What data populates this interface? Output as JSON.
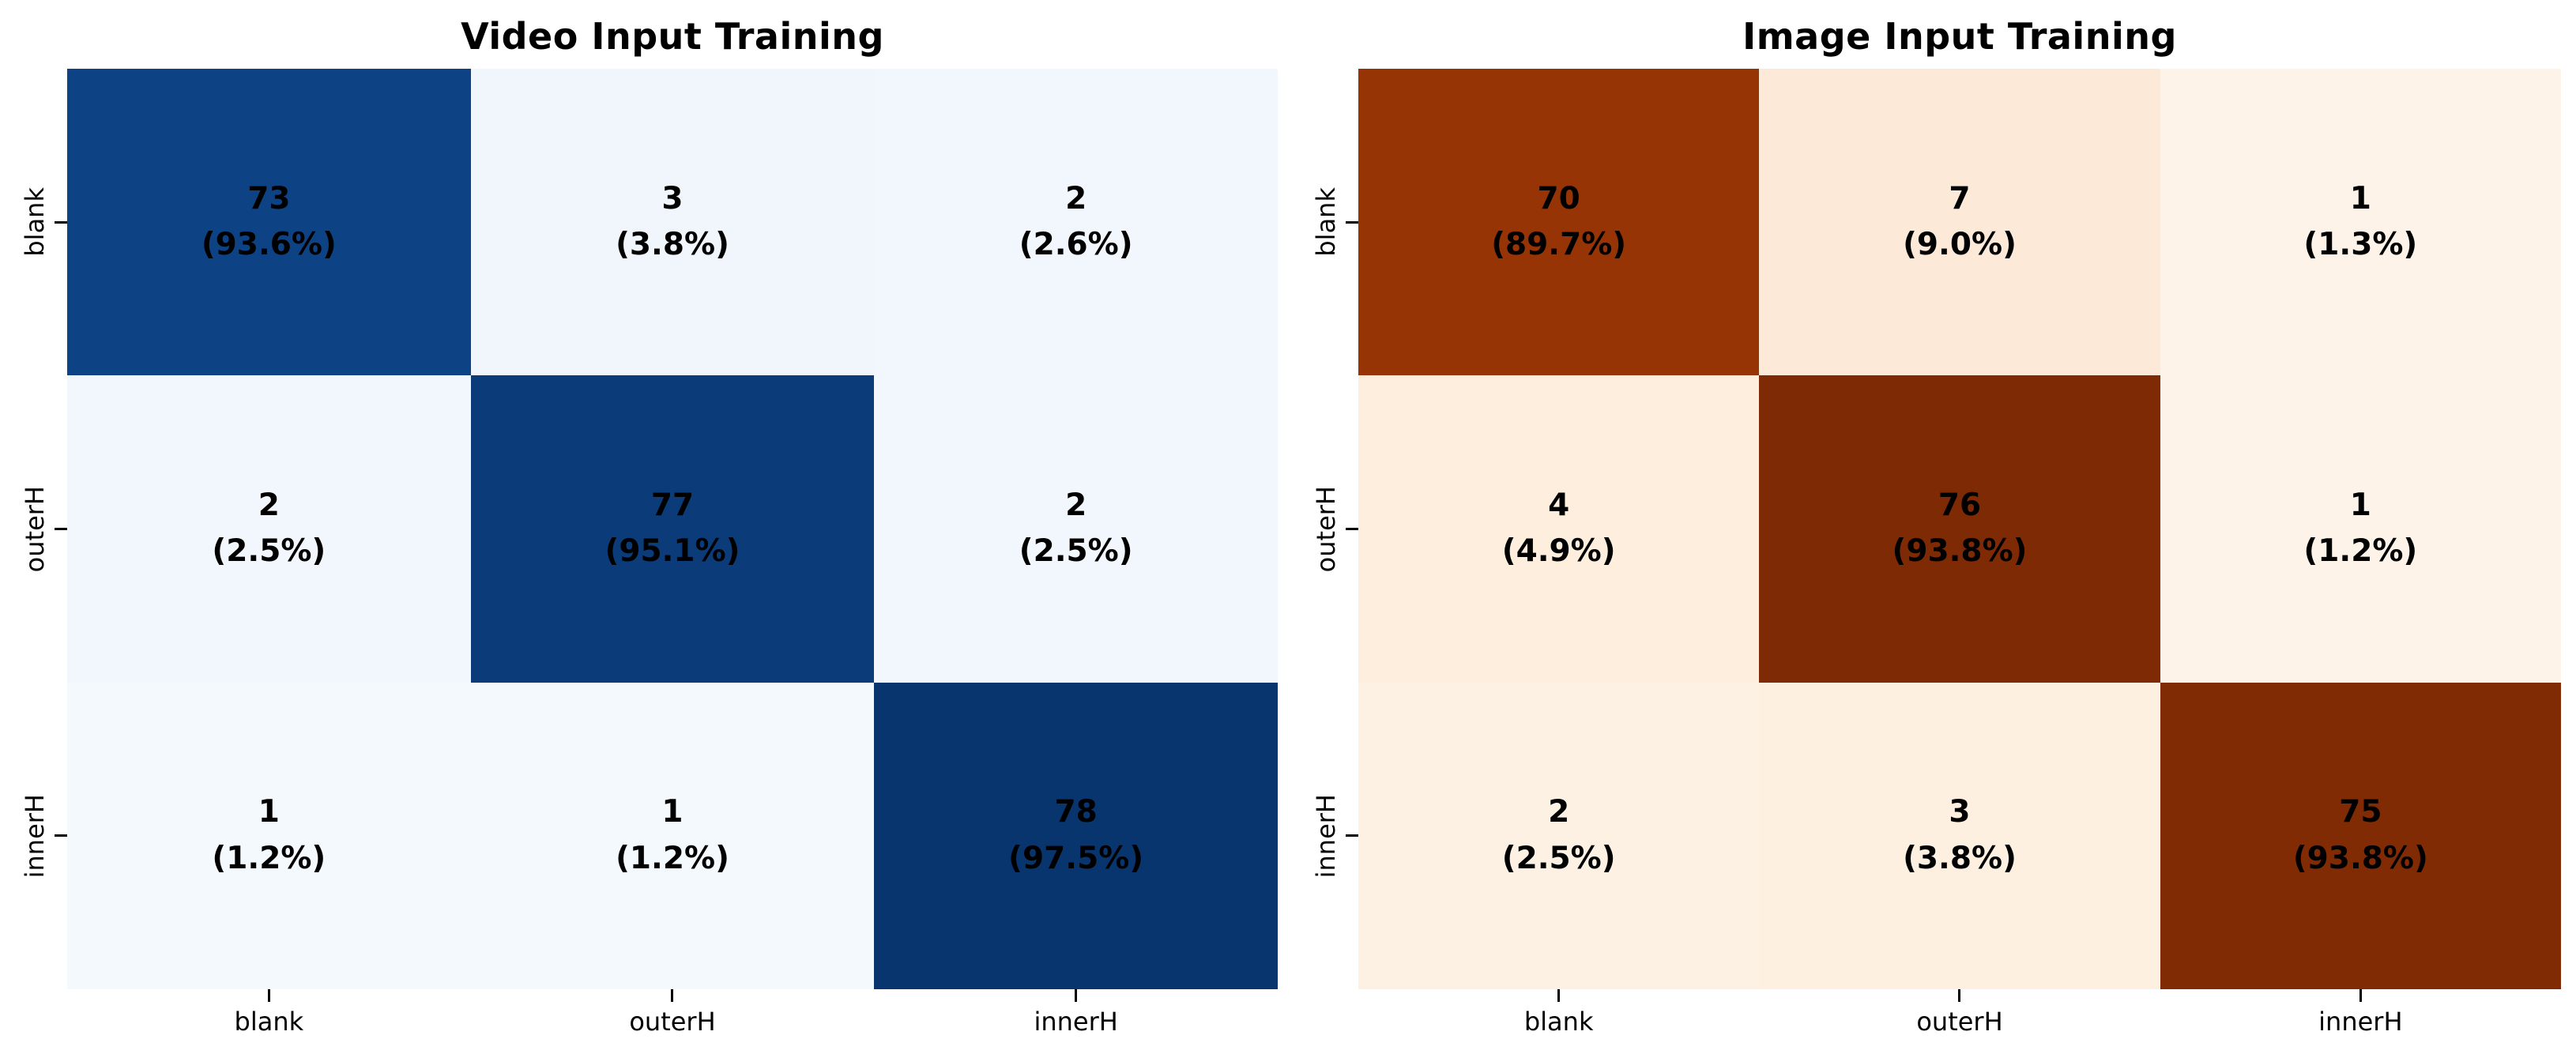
{
  "figure": {
    "background_color": "#ffffff",
    "text_color": "#000000"
  },
  "chart_data": [
    {
      "type": "heatmap",
      "title": "Video Input Training",
      "colormap": "Blues",
      "legend_position": "none",
      "grid": false,
      "x_tick_labels": [
        "blank",
        "outerH",
        "innerH"
      ],
      "y_tick_labels": [
        "blank",
        "outerH",
        "innerH"
      ],
      "matrix_counts": [
        [
          73,
          3,
          2
        ],
        [
          2,
          77,
          2
        ],
        [
          1,
          1,
          78
        ]
      ],
      "matrix_percents": [
        [
          93.6,
          3.8,
          2.6
        ],
        [
          2.5,
          95.1,
          2.5
        ],
        [
          1.2,
          1.2,
          97.5
        ]
      ],
      "cells": [
        {
          "count": "73",
          "pct": "(93.6%)",
          "color": "#0d4384"
        },
        {
          "count": "3",
          "pct": "(3.8%)",
          "color": "#f0f6fc"
        },
        {
          "count": "2",
          "pct": "(2.6%)",
          "color": "#f2f7fd"
        },
        {
          "count": "2",
          "pct": "(2.5%)",
          "color": "#f2f7fd"
        },
        {
          "count": "77",
          "pct": "(95.1%)",
          "color": "#0b3b78"
        },
        {
          "count": "2",
          "pct": "(2.5%)",
          "color": "#f2f7fd"
        },
        {
          "count": "1",
          "pct": "(1.2%)",
          "color": "#f4f9fe"
        },
        {
          "count": "1",
          "pct": "(1.2%)",
          "color": "#f4f9fe"
        },
        {
          "count": "78",
          "pct": "(97.5%)",
          "color": "#09356e"
        }
      ]
    },
    {
      "type": "heatmap",
      "title": "Image Input Training",
      "colormap": "Oranges",
      "legend_position": "none",
      "grid": false,
      "x_tick_labels": [
        "blank",
        "outerH",
        "innerH"
      ],
      "y_tick_labels": [
        "blank",
        "outerH",
        "innerH"
      ],
      "matrix_counts": [
        [
          70,
          7,
          1
        ],
        [
          4,
          76,
          1
        ],
        [
          2,
          3,
          75
        ]
      ],
      "matrix_percents": [
        [
          89.7,
          9.0,
          1.3
        ],
        [
          4.9,
          93.8,
          1.2
        ],
        [
          2.5,
          3.8,
          93.8
        ]
      ],
      "cells": [
        {
          "count": "70",
          "pct": "(89.7%)",
          "color": "#973405"
        },
        {
          "count": "7",
          "pct": "(9.0%)",
          "color": "#fce9d7"
        },
        {
          "count": "1",
          "pct": "(1.3%)",
          "color": "#fdf3e8"
        },
        {
          "count": "4",
          "pct": "(4.9%)",
          "color": "#fdeedd"
        },
        {
          "count": "76",
          "pct": "(93.8%)",
          "color": "#7e2a04"
        },
        {
          "count": "1",
          "pct": "(1.2%)",
          "color": "#fdf3e8"
        },
        {
          "count": "2",
          "pct": "(2.5%)",
          "color": "#fdf1e4"
        },
        {
          "count": "3",
          "pct": "(3.8%)",
          "color": "#fdf0e0"
        },
        {
          "count": "75",
          "pct": "(93.8%)",
          "color": "#802b04"
        }
      ]
    }
  ]
}
